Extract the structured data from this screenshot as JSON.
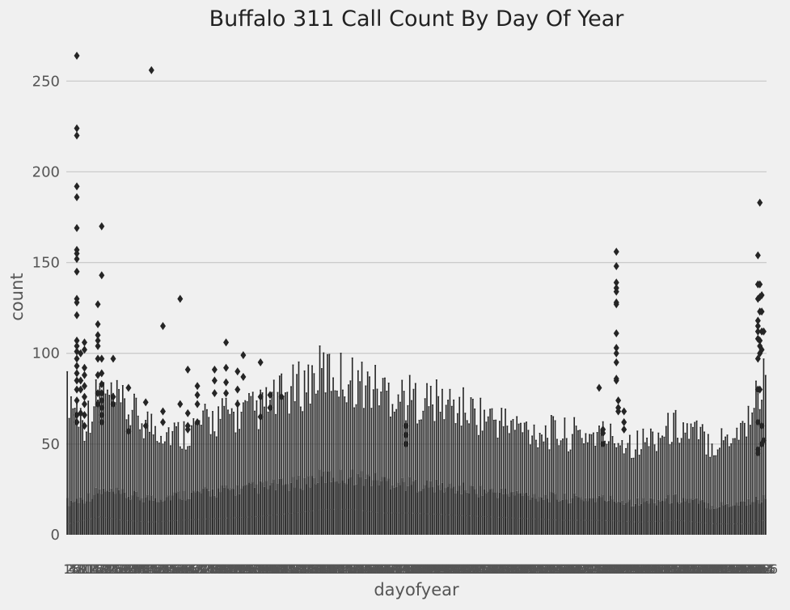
{
  "chart_data": {
    "type": "box",
    "title": "Buffalo 311 Call Count By Day Of Year",
    "xlabel": "dayofyear",
    "ylabel": "count",
    "categories_range": [
      1,
      366
    ],
    "xtick_labels_visible": [
      "1",
      "365"
    ],
    "ylim": [
      0,
      270
    ],
    "yticks": [
      0,
      50,
      100,
      150,
      200,
      250
    ],
    "grid": "horizontal",
    "colors": {
      "background": "#f0f0f0",
      "box": "#252525",
      "grid": "#cbcbcb",
      "text": "#444444",
      "title": "#222222"
    },
    "summary": [
      {
        "day": 1,
        "median": 6,
        "q3": 18,
        "whisker_high": 78
      },
      {
        "day": 10,
        "median": 8,
        "q3": 20,
        "whisker_high": 62
      },
      {
        "day": 18,
        "median": 10,
        "q3": 24,
        "whisker_high": 78
      },
      {
        "day": 30,
        "median": 8,
        "q3": 22,
        "whisker_high": 70
      },
      {
        "day": 45,
        "median": 7,
        "q3": 20,
        "whisker_high": 60
      },
      {
        "day": 60,
        "median": 8,
        "q3": 22,
        "whisker_high": 55
      },
      {
        "day": 80,
        "median": 9,
        "q3": 24,
        "whisker_high": 65
      },
      {
        "day": 100,
        "median": 10,
        "q3": 26,
        "whisker_high": 68
      },
      {
        "day": 120,
        "median": 12,
        "q3": 28,
        "whisker_high": 80
      },
      {
        "day": 135,
        "median": 14,
        "q3": 32,
        "whisker_high": 90
      },
      {
        "day": 150,
        "median": 14,
        "q3": 32,
        "whisker_high": 85
      },
      {
        "day": 165,
        "median": 12,
        "q3": 30,
        "whisker_high": 80
      },
      {
        "day": 180,
        "median": 12,
        "q3": 28,
        "whisker_high": 75
      },
      {
        "day": 200,
        "median": 11,
        "q3": 26,
        "whisker_high": 72
      },
      {
        "day": 220,
        "median": 10,
        "q3": 24,
        "whisker_high": 65
      },
      {
        "day": 240,
        "median": 9,
        "q3": 22,
        "whisker_high": 58
      },
      {
        "day": 260,
        "median": 8,
        "q3": 20,
        "whisker_high": 55
      },
      {
        "day": 280,
        "median": 8,
        "q3": 20,
        "whisker_high": 55
      },
      {
        "day": 300,
        "median": 7,
        "q3": 18,
        "whisker_high": 50
      },
      {
        "day": 320,
        "median": 8,
        "q3": 20,
        "whisker_high": 60
      },
      {
        "day": 340,
        "median": 6,
        "q3": 16,
        "whisker_high": 50
      },
      {
        "day": 355,
        "median": 6,
        "q3": 18,
        "whisker_high": 60
      },
      {
        "day": 366,
        "median": 8,
        "q3": 20,
        "whisker_high": 88
      }
    ],
    "outliers": [
      {
        "day": 6,
        "values": [
          264,
          224,
          220,
          192,
          186,
          169,
          157,
          155,
          152,
          145,
          130,
          128,
          121,
          107,
          104,
          101,
          97,
          93,
          89,
          85,
          80,
          74,
          66,
          62
        ]
      },
      {
        "day": 8,
        "values": [
          100,
          85,
          80,
          67
        ]
      },
      {
        "day": 10,
        "values": [
          106,
          102,
          92,
          88,
          82,
          76,
          72,
          66,
          60
        ]
      },
      {
        "day": 17,
        "values": [
          127,
          116,
          110,
          107,
          104,
          97,
          88,
          78,
          72
        ]
      },
      {
        "day": 19,
        "values": [
          170,
          143,
          97,
          89,
          83,
          78,
          74,
          70,
          66,
          62
        ]
      },
      {
        "day": 25,
        "values": [
          97,
          76,
          72
        ]
      },
      {
        "day": 33,
        "values": [
          81,
          57
        ]
      },
      {
        "day": 42,
        "values": [
          73,
          60
        ]
      },
      {
        "day": 45,
        "values": [
          256
        ]
      },
      {
        "day": 51,
        "values": [
          115,
          68,
          62
        ]
      },
      {
        "day": 60,
        "values": [
          130,
          72
        ]
      },
      {
        "day": 64,
        "values": [
          91,
          67,
          60,
          58
        ]
      },
      {
        "day": 69,
        "values": [
          82,
          77,
          72,
          62
        ]
      },
      {
        "day": 78,
        "values": [
          91,
          85,
          78
        ]
      },
      {
        "day": 84,
        "values": [
          106,
          92,
          84,
          78
        ]
      },
      {
        "day": 90,
        "values": [
          90,
          80,
          72
        ]
      },
      {
        "day": 93,
        "values": [
          99,
          87
        ]
      },
      {
        "day": 102,
        "values": [
          95,
          76,
          65
        ]
      },
      {
        "day": 107,
        "values": [
          77,
          70
        ]
      },
      {
        "day": 113,
        "values": [
          76
        ]
      },
      {
        "day": 178,
        "values": [
          60,
          55,
          50
        ]
      },
      {
        "day": 279,
        "values": [
          81
        ]
      },
      {
        "day": 281,
        "values": [
          58,
          56,
          50
        ]
      },
      {
        "day": 288,
        "values": [
          156,
          148,
          139,
          136,
          134,
          128,
          127,
          111,
          103,
          100,
          95,
          86,
          85
        ]
      },
      {
        "day": 289,
        "values": [
          74,
          70,
          68
        ]
      },
      {
        "day": 292,
        "values": [
          68,
          62,
          58
        ]
      },
      {
        "day": 362,
        "values": [
          154,
          138,
          130,
          118,
          115,
          112,
          108,
          97,
          80,
          62,
          47,
          45
        ]
      },
      {
        "day": 363,
        "values": [
          183,
          138,
          131,
          123,
          107,
          104,
          100,
          80
        ]
      },
      {
        "day": 364,
        "values": [
          132,
          123,
          112,
          102,
          60,
          50
        ]
      },
      {
        "day": 365,
        "values": [
          112,
          52
        ]
      }
    ]
  }
}
